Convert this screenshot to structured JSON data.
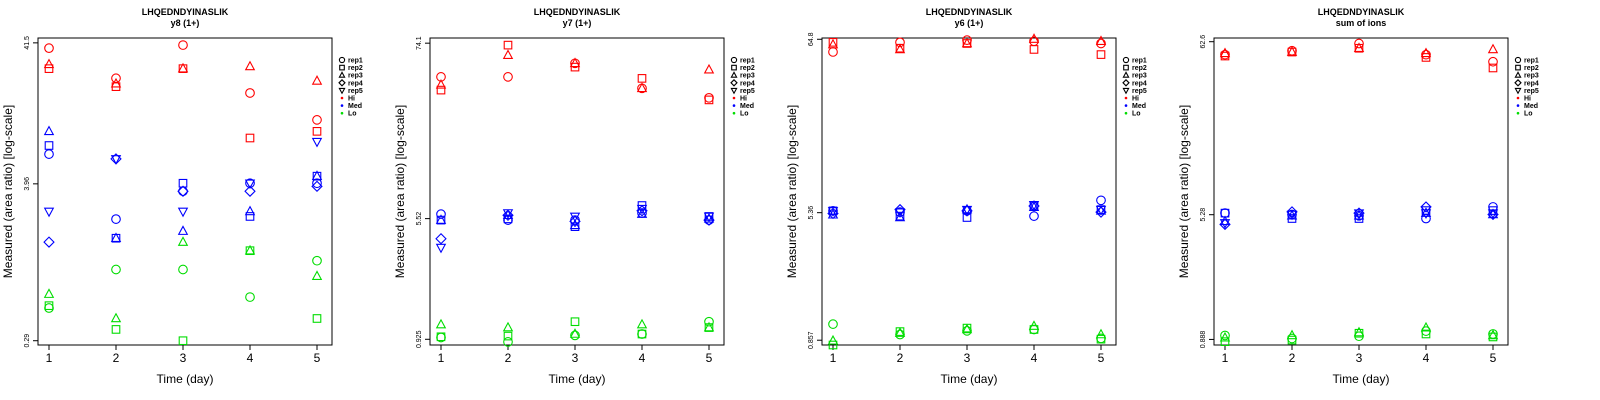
{
  "colors": {
    "Hi": "#ff0000",
    "Med": "#0000ff",
    "Lo": "#00dd00",
    "axis": "#000000"
  },
  "legend": {
    "replicates": [
      {
        "label": "rep1",
        "shape": "circle"
      },
      {
        "label": "rep2",
        "shape": "square"
      },
      {
        "label": "rep3",
        "shape": "triangle-up"
      },
      {
        "label": "rep4",
        "shape": "diamond"
      },
      {
        "label": "rep5",
        "shape": "triangle-down"
      }
    ],
    "groups": [
      {
        "label": "Hi",
        "color": "#ff0000"
      },
      {
        "label": "Med",
        "color": "#0000ff"
      },
      {
        "label": "Lo",
        "color": "#00dd00"
      }
    ]
  },
  "chart_data": [
    {
      "type": "scatter",
      "title": "LHQEDNDYINASLIK",
      "subtitle": "y8 (1+)",
      "xlabel": "Time (day)",
      "ylabel": "Measured (area ratio) [log-scale]",
      "x_ticks": [
        "1",
        "2",
        "3",
        "4",
        "5"
      ],
      "y_ticks": [
        "0.29",
        "3.96",
        "41.5"
      ],
      "ylim": [
        0.27,
        45
      ],
      "y_scale": "log",
      "series": [
        {
          "group": "Hi",
          "rep": "rep1",
          "values": [
            38,
            23,
            40,
            18,
            11.5
          ]
        },
        {
          "group": "Hi",
          "rep": "rep2",
          "values": [
            27,
            20,
            27,
            8.5,
            9.5
          ]
        },
        {
          "group": "Hi",
          "rep": "rep3",
          "values": [
            29,
            21,
            27,
            28,
            22
          ]
        },
        {
          "group": "Med",
          "rep": "rep1",
          "values": [
            6.5,
            2.2,
            3.5,
            4.0,
            4.0
          ]
        },
        {
          "group": "Med",
          "rep": "rep2",
          "values": [
            7.5,
            1.6,
            4.0,
            2.3,
            4.5
          ]
        },
        {
          "group": "Med",
          "rep": "rep3",
          "values": [
            9.5,
            1.6,
            1.8,
            2.5,
            4.5
          ]
        },
        {
          "group": "Med",
          "rep": "rep4",
          "values": [
            1.5,
            6.0,
            3.5,
            3.5,
            3.8
          ]
        },
        {
          "group": "Med",
          "rep": "rep5",
          "values": [
            2.5,
            6.0,
            2.5,
            4.0,
            8.0
          ]
        },
        {
          "group": "Lo",
          "rep": "rep1",
          "values": [
            0.5,
            0.95,
            0.95,
            0.6,
            1.1
          ]
        },
        {
          "group": "Lo",
          "rep": "rep2",
          "values": [
            0.52,
            0.35,
            0.29,
            1.3,
            0.42
          ]
        },
        {
          "group": "Lo",
          "rep": "rep3",
          "values": [
            0.63,
            0.42,
            1.5,
            1.3,
            0.85
          ]
        }
      ]
    },
    {
      "type": "scatter",
      "title": "LHQEDNDYINASLIK",
      "subtitle": "y7 (1+)",
      "xlabel": "Time (day)",
      "ylabel": "Measured (area ratio) [log-scale]",
      "x_ticks": [
        "1",
        "2",
        "3",
        "4",
        "5"
      ],
      "y_ticks": [
        "0.925",
        "5.52",
        "74.1"
      ],
      "ylim": [
        0.85,
        80
      ],
      "y_scale": "log",
      "series": [
        {
          "group": "Hi",
          "rep": "rep1",
          "values": [
            45,
            45,
            55,
            38,
            33
          ]
        },
        {
          "group": "Hi",
          "rep": "rep2",
          "values": [
            37,
            72,
            52,
            44,
            32
          ]
        },
        {
          "group": "Hi",
          "rep": "rep3",
          "values": [
            40,
            62,
            55,
            38,
            50
          ]
        },
        {
          "group": "Med",
          "rep": "rep1",
          "values": [
            5.9,
            5.4,
            5.4,
            6.0,
            5.4
          ]
        },
        {
          "group": "Med",
          "rep": "rep2",
          "values": [
            5.4,
            5.5,
            4.9,
            6.7,
            5.7
          ]
        },
        {
          "group": "Med",
          "rep": "rep3",
          "values": [
            5.4,
            5.8,
            5.0,
            5.9,
            5.5
          ]
        },
        {
          "group": "Med",
          "rep": "rep4",
          "values": [
            4.1,
            5.8,
            5.3,
            6.2,
            5.4
          ]
        },
        {
          "group": "Med",
          "rep": "rep5",
          "values": [
            3.6,
            6.0,
            5.7,
            6.4,
            5.7
          ]
        },
        {
          "group": "Lo",
          "rep": "rep1",
          "values": [
            0.95,
            0.89,
            0.98,
            1.0,
            1.2
          ]
        },
        {
          "group": "Lo",
          "rep": "rep2",
          "values": [
            0.96,
            0.97,
            1.2,
            1.0,
            1.1
          ]
        },
        {
          "group": "Lo",
          "rep": "rep3",
          "values": [
            1.15,
            1.1,
            1.0,
            1.15,
            1.1
          ]
        }
      ]
    },
    {
      "type": "scatter",
      "title": "LHQEDNDYINASLIK",
      "subtitle": "y6 (1+)",
      "xlabel": "Time (day)",
      "ylabel": "Measured (area ratio) [log-scale]",
      "x_ticks": [
        "1",
        "2",
        "3",
        "4",
        "5"
      ],
      "y_ticks": [
        "0.857",
        "5.36",
        "64.8"
      ],
      "ylim": [
        0.8,
        66
      ],
      "y_scale": "log",
      "series": [
        {
          "group": "Hi",
          "rep": "rep1",
          "values": [
            54,
            62,
            64,
            63,
            61
          ]
        },
        {
          "group": "Hi",
          "rep": "rep2",
          "values": [
            62,
            57,
            61,
            56,
            52
          ]
        },
        {
          "group": "Hi",
          "rep": "rep3",
          "values": [
            60,
            56,
            61,
            65,
            63
          ]
        },
        {
          "group": "Med",
          "rep": "rep1",
          "values": [
            5.5,
            5.4,
            5.5,
            5.1,
            6.4
          ]
        },
        {
          "group": "Med",
          "rep": "rep2",
          "values": [
            5.5,
            5.1,
            5.0,
            5.9,
            5.6
          ]
        },
        {
          "group": "Med",
          "rep": "rep3",
          "values": [
            5.2,
            5.0,
            5.6,
            5.8,
            5.5
          ]
        },
        {
          "group": "Med",
          "rep": "rep4",
          "values": [
            5.3,
            5.6,
            5.5,
            5.9,
            5.4
          ]
        },
        {
          "group": "Med",
          "rep": "rep5",
          "values": [
            5.5,
            5.4,
            5.6,
            6.0,
            5.6
          ]
        },
        {
          "group": "Lo",
          "rep": "rep1",
          "values": [
            1.08,
            0.93,
            0.98,
            1.0,
            0.88
          ]
        },
        {
          "group": "Lo",
          "rep": "rep2",
          "values": [
            0.8,
            0.97,
            1.02,
            1.0,
            0.87
          ]
        },
        {
          "group": "Lo",
          "rep": "rep3",
          "values": [
            0.85,
            0.95,
            1.0,
            1.05,
            0.93
          ]
        }
      ]
    },
    {
      "type": "scatter",
      "title": "LHQEDNDYINASLIK",
      "subtitle": "sum of ions",
      "xlabel": "Time (day)",
      "ylabel": "Measured (area ratio) [log-scale]",
      "x_ticks": [
        "1",
        "2",
        "3",
        "4",
        "5"
      ],
      "y_ticks": [
        "0.888",
        "5.28",
        "62.6"
      ],
      "ylim": [
        0.82,
        66
      ],
      "y_scale": "log",
      "series": [
        {
          "group": "Hi",
          "rep": "rep1",
          "values": [
            52,
            55,
            61,
            52,
            47
          ]
        },
        {
          "group": "Hi",
          "rep": "rep2",
          "values": [
            51,
            54,
            57,
            50,
            43
          ]
        },
        {
          "group": "Hi",
          "rep": "rep3",
          "values": [
            53,
            54,
            57,
            53,
            56
          ]
        },
        {
          "group": "Med",
          "rep": "rep1",
          "values": [
            5.4,
            5.3,
            5.2,
            5.0,
            5.9
          ]
        },
        {
          "group": "Med",
          "rep": "rep2",
          "values": [
            5.4,
            5.0,
            5.0,
            5.6,
            5.6
          ]
        },
        {
          "group": "Med",
          "rep": "rep3",
          "values": [
            4.8,
            5.2,
            5.2,
            5.4,
            5.3
          ]
        },
        {
          "group": "Med",
          "rep": "rep4",
          "values": [
            4.6,
            5.5,
            5.4,
            5.9,
            5.3
          ]
        },
        {
          "group": "Med",
          "rep": "rep5",
          "values": [
            4.7,
            5.3,
            5.4,
            5.4,
            5.4
          ]
        },
        {
          "group": "Lo",
          "rep": "rep1",
          "values": [
            0.94,
            0.9,
            0.93,
            1.0,
            0.96
          ]
        },
        {
          "group": "Lo",
          "rep": "rep2",
          "values": [
            0.86,
            0.88,
            0.97,
            0.96,
            0.92
          ]
        },
        {
          "group": "Lo",
          "rep": "rep3",
          "values": [
            0.91,
            0.94,
            0.98,
            1.05,
            0.94
          ]
        }
      ]
    }
  ]
}
